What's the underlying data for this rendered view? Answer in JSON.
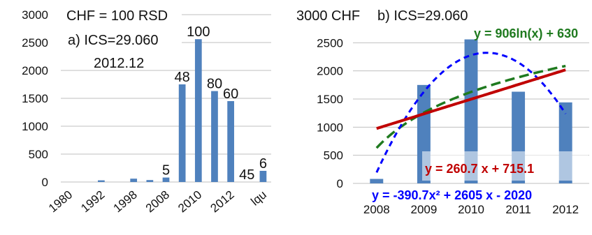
{
  "chart_data": [
    {
      "type": "bar",
      "panel": "a",
      "annotations": [
        "CHF = 100 RSD",
        "a) ICS=29.060",
        "2012.12"
      ],
      "categories": [
        "1980",
        "",
        "1992",
        "",
        "1998",
        "",
        "2008",
        "",
        "2010",
        "",
        "2012",
        "",
        "lqu"
      ],
      "values": [
        0,
        0,
        30,
        0,
        60,
        35,
        80,
        1750,
        2560,
        1630,
        1450,
        0,
        200
      ],
      "data_labels": [
        "",
        "",
        "",
        "",
        "",
        "",
        "5",
        "48",
        "100",
        "80",
        "60",
        "45",
        "6"
      ],
      "yticks": [
        0,
        500,
        1000,
        1500,
        2000,
        2500,
        3000
      ],
      "ylim": [
        0,
        3000
      ],
      "grid": true,
      "color": "#4F81BD"
    },
    {
      "type": "bar",
      "panel": "b",
      "annotations": [
        "3000 CHF",
        "b) ICS=29.060"
      ],
      "categories": [
        "2008",
        "2009",
        "2010",
        "2011",
        "2012"
      ],
      "x": [
        1,
        2,
        3,
        4,
        5
      ],
      "values": [
        80,
        1750,
        2560,
        1630,
        1440
      ],
      "yticks": [
        0,
        500,
        1000,
        1500,
        2000,
        2500
      ],
      "ylim": [
        0,
        3000
      ],
      "grid": true,
      "color": "#4F81BD",
      "trendlines": [
        {
          "type": "linear",
          "label": "y = 260.7 x + 715.1",
          "a": 260.7,
          "b": 715.1,
          "color": "#C00000"
        },
        {
          "type": "log",
          "label": "y = 906ln(x) + 630",
          "a": 906,
          "b": 630,
          "color": "#1F7A1F"
        },
        {
          "type": "poly2",
          "label": "y = -390.7x² + 2605 x - 2020",
          "a": -390.7,
          "b": 2605,
          "c": -2020,
          "color": "#0000FF"
        }
      ]
    }
  ]
}
